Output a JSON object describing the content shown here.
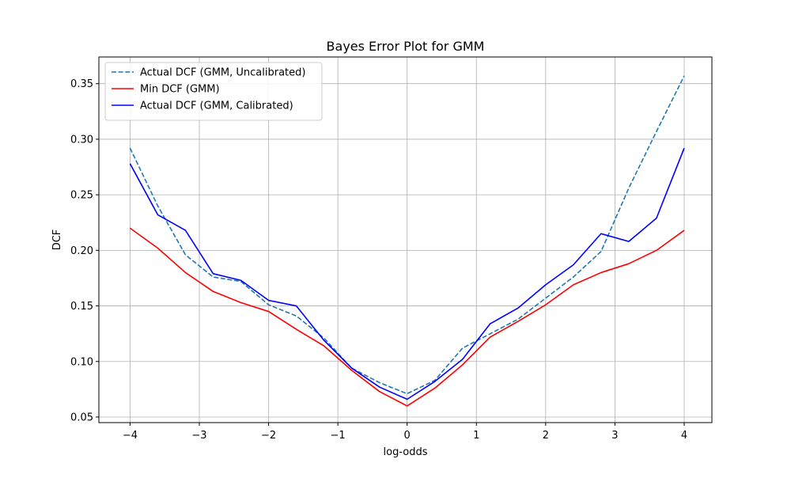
{
  "chart_data": {
    "type": "line",
    "title": "Bayes Error Plot for GMM",
    "xlabel": "log-odds",
    "ylabel": "DCF",
    "xlim": [
      -4.45,
      4.4
    ],
    "ylim": [
      0.045,
      0.374
    ],
    "xticks": [
      -4,
      -3,
      -2,
      -1,
      0,
      1,
      2,
      3,
      4
    ],
    "xtick_labels": [
      "−4",
      "−3",
      "−2",
      "−1",
      "0",
      "1",
      "2",
      "3",
      "4"
    ],
    "yticks": [
      0.05,
      0.1,
      0.15,
      0.2,
      0.25,
      0.3,
      0.35
    ],
    "ytick_labels": [
      "0.05",
      "0.10",
      "0.15",
      "0.20",
      "0.25",
      "0.30",
      "0.35"
    ],
    "grid": true,
    "legend_position": "top-left",
    "x": [
      -4.0,
      -3.6,
      -3.2,
      -2.8,
      -2.4,
      -2.0,
      -1.6,
      -1.2,
      -0.8,
      -0.4,
      0.0,
      0.4,
      0.8,
      1.2,
      1.6,
      2.0,
      2.4,
      2.8,
      3.2,
      3.6,
      4.0
    ],
    "series": [
      {
        "name": "Actual DCF (GMM, Uncalibrated)",
        "color": "#1f77b4",
        "style": "dashed",
        "values": [
          0.292,
          0.24,
          0.196,
          0.176,
          0.172,
          0.151,
          0.141,
          0.121,
          0.094,
          0.081,
          0.071,
          0.083,
          0.112,
          0.125,
          0.138,
          0.157,
          0.176,
          0.199,
          0.256,
          0.307,
          0.357
        ]
      },
      {
        "name": "Min DCF (GMM)",
        "color": "#ff0000",
        "style": "solid",
        "values": [
          0.22,
          0.202,
          0.18,
          0.163,
          0.153,
          0.145,
          0.129,
          0.114,
          0.092,
          0.073,
          0.06,
          0.076,
          0.097,
          0.122,
          0.136,
          0.151,
          0.169,
          0.18,
          0.188,
          0.2,
          0.218
        ]
      },
      {
        "name": "Actual DCF (GMM, Calibrated)",
        "color": "#0000ff",
        "style": "solid",
        "values": [
          0.278,
          0.232,
          0.218,
          0.179,
          0.173,
          0.155,
          0.15,
          0.119,
          0.094,
          0.077,
          0.066,
          0.082,
          0.102,
          0.134,
          0.148,
          0.169,
          0.187,
          0.215,
          0.208,
          0.229,
          0.292
        ]
      }
    ]
  }
}
